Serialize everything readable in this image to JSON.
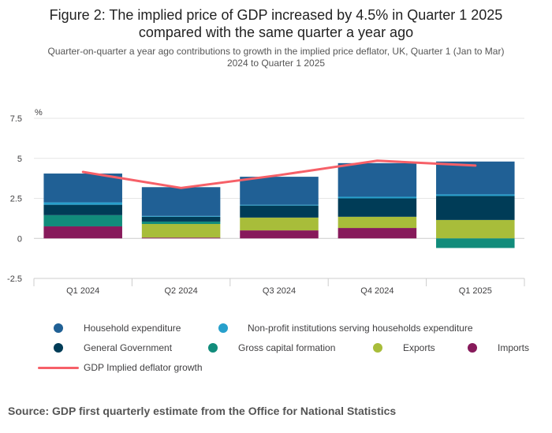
{
  "title_line1": "Figure 2: The implied price of GDP increased by 4.5% in Quarter 1 2025",
  "title_line2": "compared with the same quarter a year ago",
  "subtitle_line1": "Quarter-on-quarter a year ago contributions to growth in the implied price deflator, UK, Quarter 1 (Jan to Mar)",
  "subtitle_line2": "2024 to Quarter 1 2025",
  "source": "Source: GDP first quarterly estimate from the Office for National Statistics",
  "chart_data": {
    "type": "bar",
    "stacked": true,
    "ylabel": "%",
    "ylim": [
      -2.5,
      7.5
    ],
    "yticks": [
      "7.5",
      "5",
      "2.5",
      "0",
      "-2.5"
    ],
    "categories": [
      "Q1 2024",
      "Q2 2024",
      "Q3 2024",
      "Q4 2024",
      "Q1 2025"
    ],
    "grid": true,
    "legend_position": "bottom",
    "series": [
      {
        "name": "Imports",
        "color": "#871a5b",
        "values": [
          0.75,
          0.05,
          0.5,
          0.65,
          0.0
        ]
      },
      {
        "name": "Exports",
        "color": "#a8bd3a",
        "values": [
          0.0,
          0.85,
          0.8,
          0.7,
          1.15
        ]
      },
      {
        "name": "Gross capital formation",
        "color": "#118c7b",
        "values": [
          0.7,
          0.15,
          0.0,
          0.0,
          -0.6
        ]
      },
      {
        "name": "General Government",
        "color": "#003c57",
        "values": [
          0.65,
          0.3,
          0.75,
          1.15,
          1.5
        ]
      },
      {
        "name": "Non-profit institutions serving households expenditure",
        "color": "#27a0cc",
        "values": [
          0.15,
          0.05,
          0.05,
          0.1,
          0.1
        ]
      },
      {
        "name": "Household expenditure",
        "color": "#206095",
        "values": [
          1.8,
          1.8,
          1.75,
          2.1,
          2.05
        ]
      }
    ],
    "line_series": {
      "name": "GDP Implied deflator growth",
      "color": "#f66068",
      "values": [
        4.15,
        3.15,
        3.95,
        4.85,
        4.55
      ]
    }
  }
}
